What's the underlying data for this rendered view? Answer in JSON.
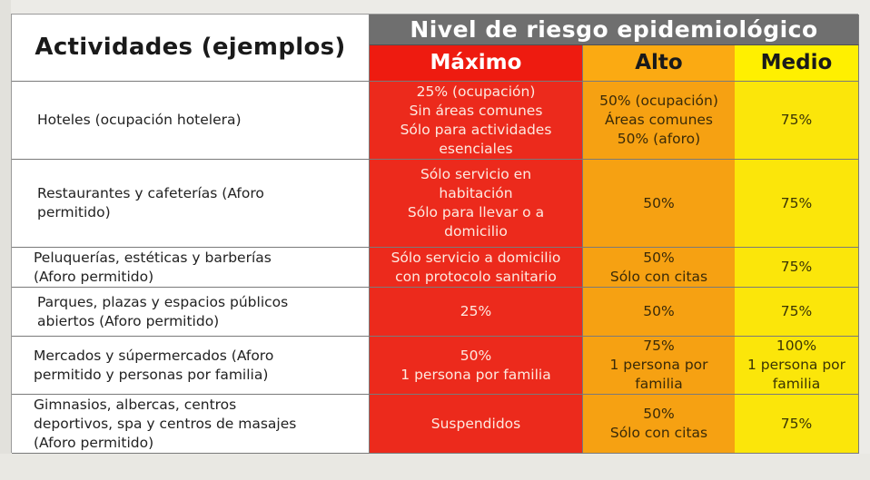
{
  "header": {
    "activities_label": "Actividades (ejemplos)",
    "risk_level_label": "Nivel de riesgo epidemiológico",
    "levels": [
      "Máximo",
      "Alto",
      "Medio"
    ]
  },
  "colors": {
    "maximo": "#ec2a1c",
    "alto": "#f6a112",
    "medio": "#fbe60a",
    "header_gray": "#6f6f6f"
  },
  "rows": [
    {
      "activity": "Hoteles (ocupación hotelera)",
      "maximo": "25% (ocupación)\nSin áreas comunes\nSólo para actividades\nesenciales",
      "alto": "50% (ocupación)\nÁreas comunes\n50% (aforo)",
      "medio": "75%"
    },
    {
      "activity": "Restaurantes y cafeterías (Aforo\npermitido)",
      "maximo": "Sólo servicio en\nhabitación\nSólo para llevar o a\ndomicilio",
      "alto": "50%",
      "medio": "75%"
    },
    {
      "activity": "Peluquerías, estéticas y barberías\n(Aforo permitido)",
      "maximo": "Sólo servicio a domicilio\ncon protocolo sanitario",
      "alto": "50%\nSólo con citas",
      "medio": "75%"
    },
    {
      "activity": "Parques, plazas y espacios públicos\nabiertos (Aforo permitido)",
      "maximo": "25%",
      "alto": "50%",
      "medio": "75%"
    },
    {
      "activity": "Mercados y súpermercados (Aforo\npermitido y personas por familia)",
      "maximo": "50%\n1 persona por familia",
      "alto": "75%\n1 persona por\nfamilia",
      "medio": "100%\n1 persona por\nfamilia"
    },
    {
      "activity": "Gimnasios, albercas, centros\ndeportivos, spa y centros de masajes\n(Aforo permitido)",
      "maximo": "Suspendidos",
      "alto": "50%\nSólo con citas",
      "medio": "75%"
    }
  ]
}
